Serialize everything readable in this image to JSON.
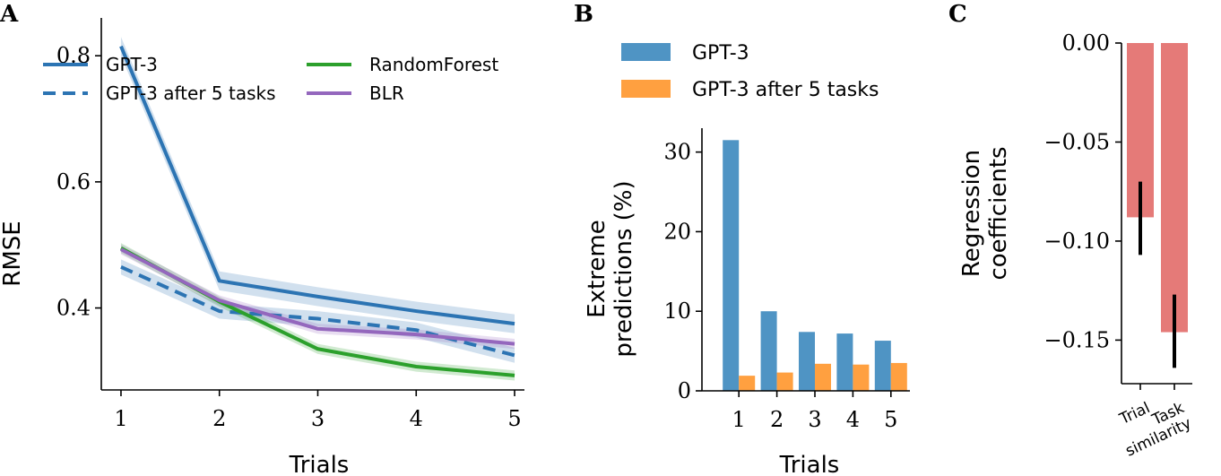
{
  "panels": {
    "a": "A",
    "b": "B",
    "c": "C"
  },
  "colors": {
    "gpt3": "#2c74b3",
    "gpt3_after": "#2c74b3",
    "randomforest": "#2ca02c",
    "blr": "#9467bd",
    "bar_gpt3": "#4f94c4",
    "bar_gpt3_after": "#ffa040",
    "bar_c": "#e57a78"
  },
  "chart_data": [
    {
      "type": "line",
      "panel": "A",
      "x": [
        1,
        2,
        3,
        4,
        5
      ],
      "xlabel": "Trials",
      "ylabel": "RMSE",
      "xlim": [
        0.8,
        5.1
      ],
      "ylim": [
        0.27,
        0.86
      ],
      "yticks": [
        0.4,
        0.6,
        0.8
      ],
      "ytick_labels": [
        "0.4",
        "0.6",
        "0.8"
      ],
      "xtick_labels": [
        "1",
        "2",
        "3",
        "4",
        "5"
      ],
      "series": [
        {
          "key": "gpt3",
          "name": "GPT-3",
          "style": "solid",
          "values": [
            0.815,
            0.443,
            0.418,
            0.395,
            0.375
          ],
          "band": 0.015
        },
        {
          "key": "gpt3_after",
          "name": "GPT-3 after 5 tasks",
          "style": "dashed",
          "values": [
            0.465,
            0.395,
            0.383,
            0.365,
            0.325
          ],
          "band": 0.012
        },
        {
          "key": "randomforest",
          "name": "RandomForest",
          "style": "solid",
          "values": [
            0.495,
            0.41,
            0.335,
            0.307,
            0.293
          ],
          "band": 0.008
        },
        {
          "key": "blr",
          "name": "BLR",
          "style": "solid",
          "values": [
            0.493,
            0.412,
            0.367,
            0.358,
            0.343
          ],
          "band": 0.008
        }
      ]
    },
    {
      "type": "bar",
      "panel": "B",
      "categories": [
        "1",
        "2",
        "3",
        "4",
        "5"
      ],
      "xlabel": "Trials",
      "ylabel_line1": "Extreme",
      "ylabel_line2": "predictions (%)",
      "ylim": [
        0,
        33
      ],
      "yticks": [
        0,
        10,
        20,
        30
      ],
      "ytick_labels": [
        "0",
        "10",
        "20",
        "30"
      ],
      "series": [
        {
          "key": "bar_gpt3",
          "name": "GPT-3",
          "values": [
            31.5,
            10.0,
            7.4,
            7.2,
            6.3
          ]
        },
        {
          "key": "bar_gpt3_after",
          "name": "GPT-3 after 5 tasks",
          "values": [
            1.9,
            2.3,
            3.4,
            3.3,
            3.5
          ]
        }
      ]
    },
    {
      "type": "bar",
      "panel": "C",
      "categories": [
        "Trial",
        "Task similarity"
      ],
      "category_lines": [
        [
          "Trial"
        ],
        [
          "Task",
          "similarity"
        ]
      ],
      "ylabel_line1": "Regression",
      "ylabel_line2": "coefficients",
      "ylim": [
        -0.172,
        0.0
      ],
      "yticks": [
        0.0,
        -0.05,
        -0.1,
        -0.15
      ],
      "ytick_labels": [
        "0.00",
        "−0.05",
        "−0.10",
        "−0.15"
      ],
      "values": [
        -0.088,
        -0.146
      ],
      "error_low": [
        -0.107,
        -0.164
      ],
      "error_high": [
        -0.07,
        -0.127
      ]
    }
  ]
}
